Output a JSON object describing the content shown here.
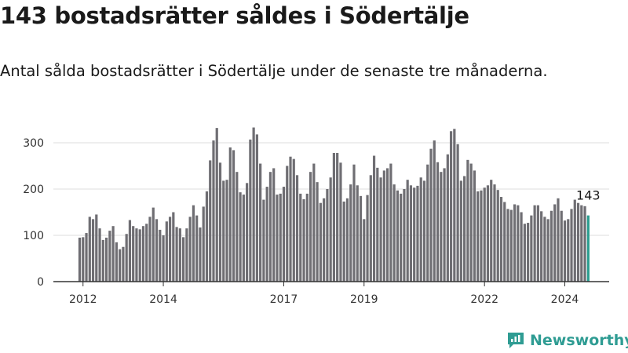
{
  "title": "143 bostadsrätter såldes i Södertälje",
  "subtitle": "Antal sålda bostadsrätter i Södertälje under de senaste tre månaderna.",
  "brand": {
    "name": "Newsworthy",
    "icon": "newsworthy-logo-icon",
    "color": "#2f9c93"
  },
  "colors": {
    "bar": "#6f6e73",
    "highlight": "#2a9d8f",
    "grid": "#dddddd",
    "axis": "#333333"
  },
  "chart_data": {
    "type": "bar",
    "title": "143 bostadsrätter såldes i Södertälje",
    "xlabel": "",
    "ylabel": "",
    "ylim": [
      0,
      340
    ],
    "yticks": [
      0,
      100,
      200,
      300
    ],
    "start": "2011-12",
    "xticks": [
      {
        "label": "2012",
        "index": 1
      },
      {
        "label": "2014",
        "index": 25
      },
      {
        "label": "2017",
        "index": 61
      },
      {
        "label": "2019",
        "index": 85
      },
      {
        "label": "2022",
        "index": 121
      },
      {
        "label": "2024",
        "index": 145
      }
    ],
    "values": [
      95,
      96,
      105,
      140,
      135,
      145,
      115,
      90,
      95,
      110,
      120,
      85,
      70,
      75,
      103,
      133,
      120,
      115,
      113,
      120,
      125,
      140,
      160,
      135,
      112,
      100,
      130,
      140,
      150,
      118,
      115,
      96,
      115,
      140,
      165,
      143,
      117,
      162,
      195,
      262,
      305,
      332,
      257,
      218,
      220,
      290,
      284,
      237,
      193,
      188,
      213,
      307,
      333,
      318,
      255,
      177,
      205,
      237,
      245,
      188,
      190,
      205,
      250,
      270,
      265,
      230,
      190,
      178,
      190,
      237,
      255,
      215,
      170,
      180,
      200,
      225,
      278,
      278,
      257,
      173,
      180,
      210,
      253,
      208,
      185,
      135,
      187,
      230,
      272,
      246,
      225,
      240,
      245,
      255,
      210,
      197,
      190,
      200,
      220,
      208,
      203,
      207,
      225,
      218,
      253,
      287,
      305,
      258,
      237,
      245,
      275,
      325,
      330,
      297,
      218,
      228,
      263,
      255,
      240,
      195,
      197,
      203,
      208,
      220,
      210,
      198,
      183,
      172,
      157,
      155,
      167,
      165,
      150,
      125,
      127,
      143,
      165,
      165,
      152,
      140,
      135,
      153,
      167,
      180,
      153,
      132,
      135,
      157,
      177,
      170,
      165,
      163,
      143
    ],
    "highlight_index": 152,
    "annotation": {
      "text": "143",
      "value": 143
    }
  }
}
